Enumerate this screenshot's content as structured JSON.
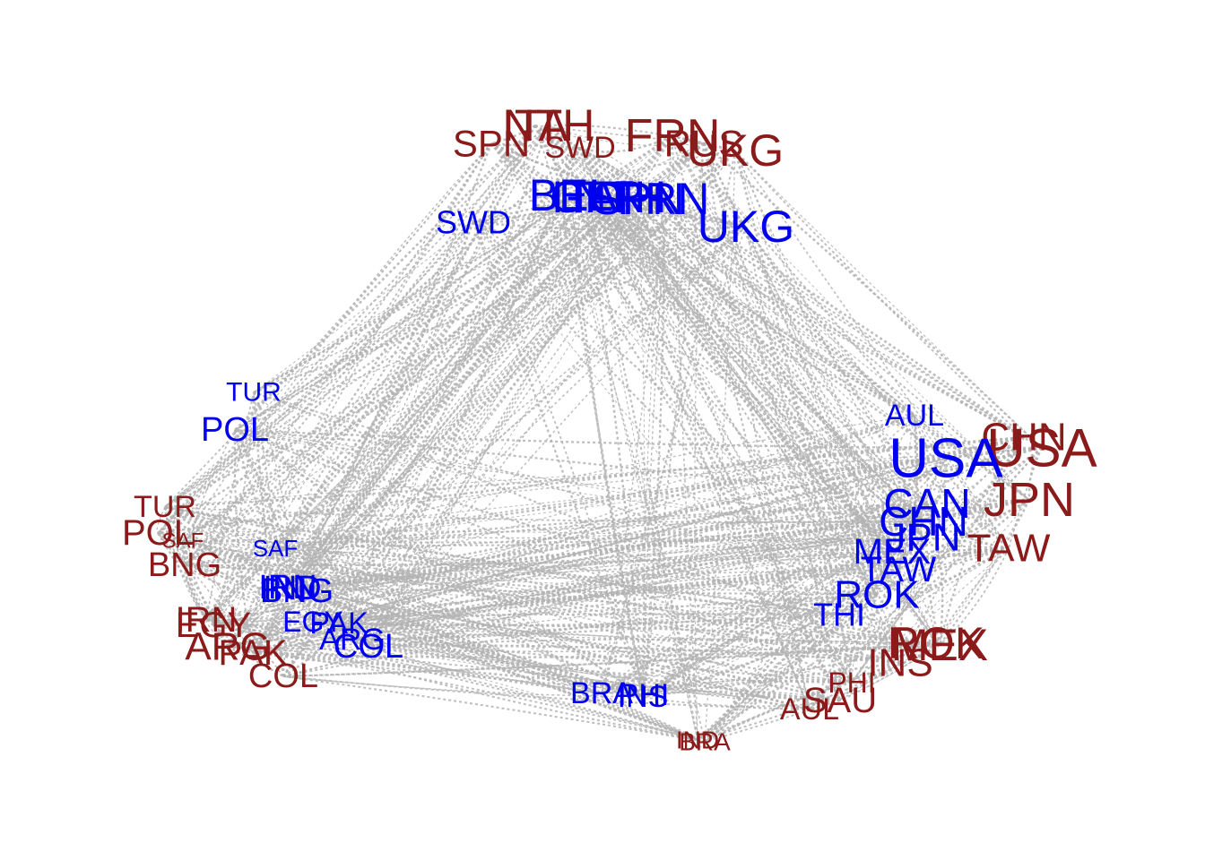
{
  "colors": {
    "edge": "#b3b3b3",
    "group_a": "#8b1a1a",
    "group_b": "#0000ee"
  },
  "edge_style": "dotted",
  "groups": [
    {
      "id": "red",
      "color": "#8b1a1a",
      "nodes": [
        "NTH",
        "ITA",
        "SPN",
        "SWD",
        "FRN",
        "RUS",
        "UKG",
        "CHN",
        "USA",
        "JPN",
        "TAW",
        "MEX",
        "ROK",
        "INS",
        "PHI",
        "SAU",
        "AUL",
        "IRN",
        "EGY",
        "ARG",
        "PAK",
        "COL",
        "TUR",
        "POL",
        "SAF",
        "BNG",
        "BRA",
        "IND"
      ]
    },
    {
      "id": "blue",
      "color": "#0000ee",
      "nodes": [
        "BEL",
        "ITA",
        "GFR",
        "NTH",
        "SPN",
        "FRN",
        "UKG",
        "SWD",
        "TUR",
        "POL",
        "AUL",
        "USA",
        "CAN",
        "CHN",
        "JPN",
        "MEX",
        "TAW",
        "ROK",
        "THI",
        "SAF",
        "IRN",
        "IND",
        "BNG",
        "EGY",
        "PAK",
        "ARG",
        "COL",
        "BRA",
        "PHI",
        "INS"
      ]
    }
  ]
}
